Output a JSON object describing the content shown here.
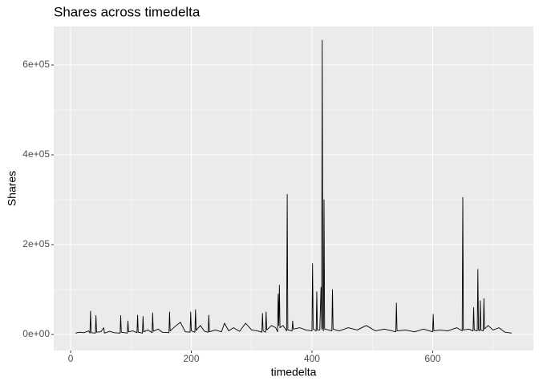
{
  "chart_data": {
    "type": "line",
    "title": "Shares across timedelta",
    "x_label": "timedelta",
    "y_label": "Shares",
    "xlim": [
      -28,
      767
    ],
    "ylim": [
      -35700,
      685700
    ],
    "xticks": [
      0,
      200,
      400,
      600
    ],
    "x_minor_grid": [
      100,
      300,
      500,
      700
    ],
    "yticks": [
      {
        "value": 0,
        "label": "0e+00"
      },
      {
        "value": 200000,
        "label": "2e+05"
      },
      {
        "value": 400000,
        "label": "4e+05"
      },
      {
        "value": 600000,
        "label": "6e+05"
      }
    ],
    "y_minor_grid": [
      100000,
      300000,
      500000
    ],
    "grid": true,
    "panel_color": "#ebebeb",
    "series": [
      {
        "color": "#000000",
        "x": [
          8,
          15,
          22,
          30,
          32,
          33,
          34,
          41,
          42,
          43,
          50,
          55,
          56,
          65,
          72,
          82,
          83,
          84,
          94,
          95,
          96,
          103,
          110,
          111,
          112,
          119,
          120,
          121,
          128,
          135,
          136,
          137,
          145,
          152,
          163,
          164,
          165,
          175,
          182,
          190,
          198,
          199,
          200,
          206,
          207,
          208,
          215,
          222,
          228,
          229,
          230,
          240,
          250,
          255,
          262,
          270,
          280,
          290,
          300,
          310,
          317,
          318,
          319,
          323,
          324,
          325,
          333,
          340,
          343,
          344,
          345,
          346,
          347,
          352,
          358,
          359,
          360,
          367,
          368,
          369,
          380,
          390,
          400,
          401,
          402,
          407,
          408,
          409,
          413,
          415,
          416,
          417,
          418,
          419,
          420,
          421,
          428,
          433,
          434,
          435,
          445,
          460,
          475,
          490,
          505,
          520,
          539,
          540,
          541,
          555,
          570,
          585,
          600,
          601,
          602,
          612,
          625,
          640,
          649,
          650,
          651,
          660,
          667,
          668,
          669,
          674,
          675,
          676,
          678,
          679,
          680,
          684,
          685,
          686,
          692,
          700,
          710,
          720,
          731
        ],
        "values": [
          3000,
          5000,
          4000,
          8000,
          3000,
          52000,
          4000,
          3000,
          42000,
          5000,
          6000,
          15000,
          3000,
          7000,
          4000,
          3000,
          42000,
          5000,
          3000,
          30000,
          6000,
          8000,
          4000,
          43000,
          5000,
          3000,
          40000,
          6000,
          10000,
          4000,
          48000,
          7000,
          12000,
          5000,
          4000,
          50000,
          8000,
          20000,
          27000,
          6000,
          5000,
          50000,
          8000,
          5000,
          55000,
          9000,
          20000,
          7000,
          5000,
          43000,
          6000,
          10000,
          6000,
          25000,
          8000,
          15000,
          7000,
          25000,
          10000,
          8000,
          5000,
          47000,
          8000,
          5000,
          50000,
          10000,
          20000,
          15000,
          6000,
          90000,
          20000,
          110000,
          15000,
          20000,
          8000,
          312000,
          10000,
          8000,
          30000,
          12000,
          15000,
          10000,
          8000,
          158000,
          12000,
          8000,
          95000,
          10000,
          10000,
          105000,
          12000,
          655000,
          15000,
          8000,
          300000,
          12000,
          10000,
          8000,
          100000,
          12000,
          8000,
          15000,
          10000,
          20000,
          8000,
          12000,
          6000,
          70000,
          8000,
          10000,
          6000,
          12000,
          6000,
          45000,
          8000,
          10000,
          8000,
          15000,
          8000,
          305000,
          10000,
          12000,
          8000,
          60000,
          10000,
          8000,
          145000,
          10000,
          8000,
          75000,
          10000,
          8000,
          80000,
          12000,
          20000,
          10000,
          15000,
          5000,
          3000
        ]
      }
    ]
  }
}
